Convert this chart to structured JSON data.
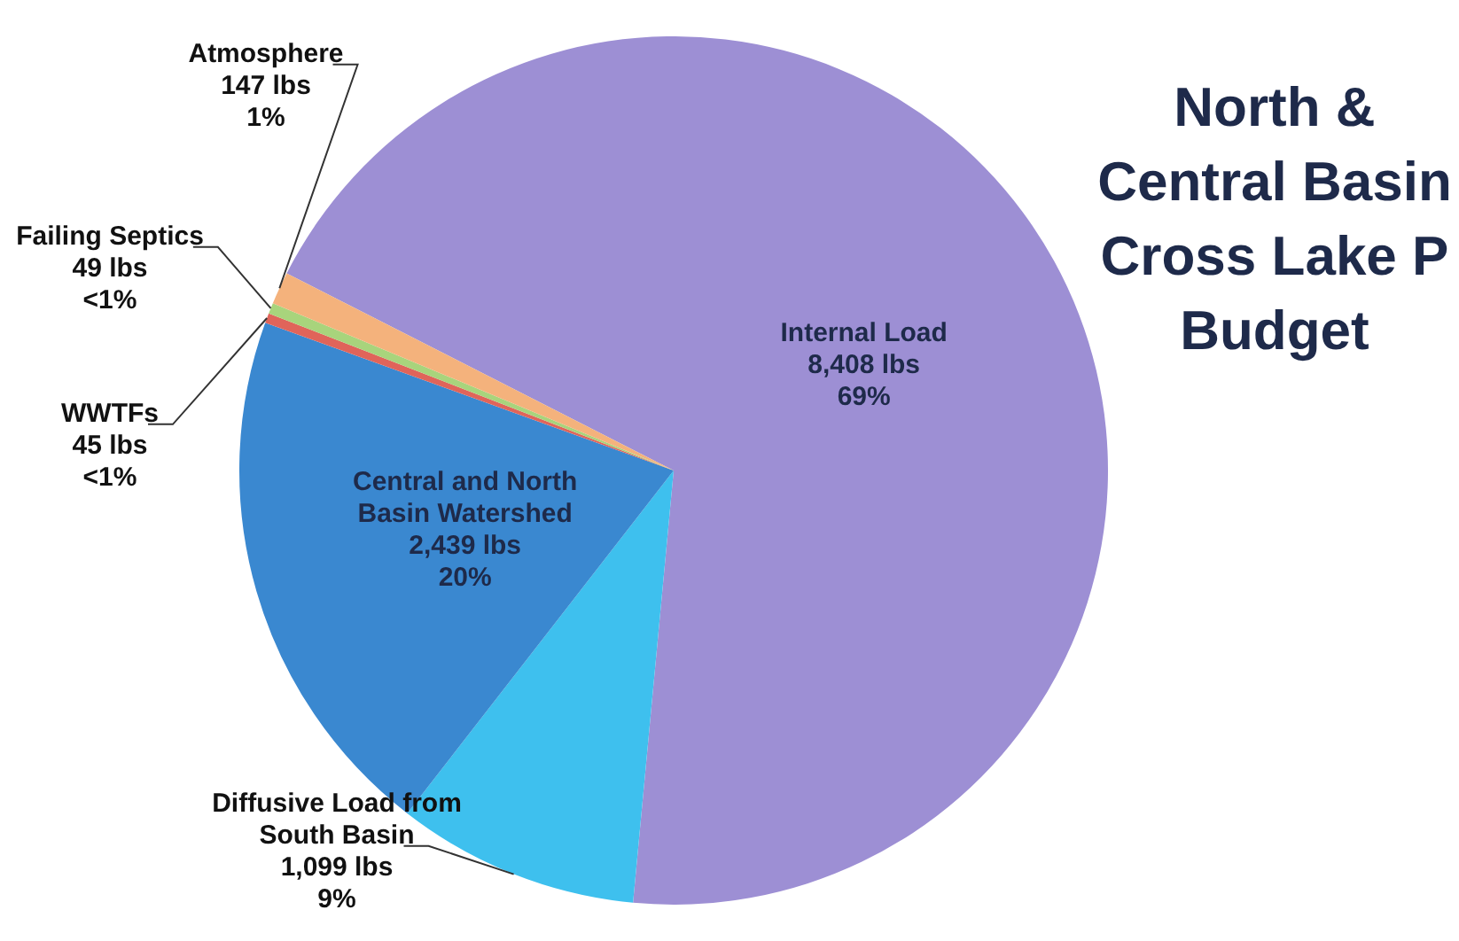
{
  "chart_data": {
    "type": "pie",
    "title": "North & Central Basin Cross Lake P Budget",
    "categories": [
      "Internal Load",
      "Diffusive Load from South Basin",
      "Central and North Basin Watershed",
      "WWTFs",
      "Failing Septics",
      "Atmosphere"
    ],
    "values": [
      8408,
      1099,
      2439,
      45,
      49,
      147
    ],
    "value_labels": [
      "8,408 lbs\n69%",
      "1,099 lbs\n9%",
      "2,439 lbs\n20%",
      "45 lbs\n<1%",
      "49 lbs\n<1%",
      "147 lbs\n1%"
    ],
    "colors": [
      "#9d8fd4",
      "#3ec0ee",
      "#3a88d0",
      "#e0645a",
      "#a8d47c",
      "#f4b27c"
    ],
    "legend": false
  }
}
